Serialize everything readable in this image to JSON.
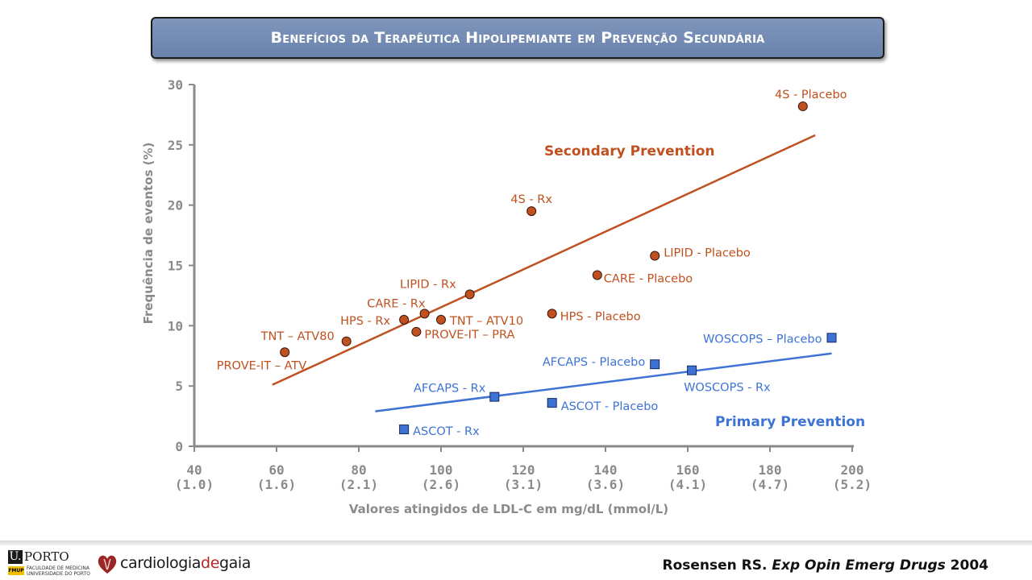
{
  "slide": {
    "title": "Benefícios da Terapêutica Hipolipemiante em Prevenção Secundária"
  },
  "chart_data": {
    "type": "scatter",
    "xlabel": "Valores atingidos de LDL-C em mg/dL (mmol/L)",
    "ylabel": "Frequência de eventos (%)",
    "xlim": [
      40,
      200
    ],
    "ylim": [
      0,
      30
    ],
    "x_ticks": [
      {
        "value": 40,
        "label": "40",
        "sublabel": "(1.0)"
      },
      {
        "value": 60,
        "label": "60",
        "sublabel": "(1.6)"
      },
      {
        "value": 80,
        "label": "80",
        "sublabel": "(2.1)"
      },
      {
        "value": 100,
        "label": "100",
        "sublabel": "(2.6)"
      },
      {
        "value": 120,
        "label": "120",
        "sublabel": "(3.1)"
      },
      {
        "value": 140,
        "label": "140",
        "sublabel": "(3.6)"
      },
      {
        "value": 160,
        "label": "160",
        "sublabel": "(4.1)"
      },
      {
        "value": 180,
        "label": "180",
        "sublabel": "(4.7)"
      },
      {
        "value": 200,
        "label": "200",
        "sublabel": "(5.2)"
      }
    ],
    "y_ticks": [
      {
        "value": 0,
        "label": "0"
      },
      {
        "value": 5,
        "label": "5"
      },
      {
        "value": 10,
        "label": "10"
      },
      {
        "value": 15,
        "label": "15"
      },
      {
        "value": 20,
        "label": "20"
      },
      {
        "value": 25,
        "label": "25"
      },
      {
        "value": 30,
        "label": "30"
      }
    ],
    "grid": false,
    "series": [
      {
        "name": "Secondary Prevention",
        "color": "#c0501f",
        "marker": "circle",
        "points": [
          {
            "label": "4S - Placebo",
            "x": 188,
            "y": 28.2
          },
          {
            "label": "4S - Rx",
            "x": 122,
            "y": 19.5
          },
          {
            "label": "LIPID - Placebo",
            "x": 152,
            "y": 15.8
          },
          {
            "label": "CARE - Placebo",
            "x": 138,
            "y": 14.2
          },
          {
            "label": "LIPID - Rx",
            "x": 107,
            "y": 12.6
          },
          {
            "label": "HPS - Placebo",
            "x": 127,
            "y": 11.0
          },
          {
            "label": "CARE - Rx",
            "x": 96,
            "y": 11.0
          },
          {
            "label": "HPS - Rx",
            "x": 91,
            "y": 10.5
          },
          {
            "label": "TNT – ATV10",
            "x": 100,
            "y": 10.5
          },
          {
            "label": "PROVE-IT – PRA",
            "x": 94,
            "y": 9.5
          },
          {
            "label": "TNT – ATV80",
            "x": 77,
            "y": 8.7
          },
          {
            "label": "PROVE-IT – ATV",
            "x": 62,
            "y": 7.8
          }
        ],
        "trendline": {
          "x": [
            59,
            191
          ],
          "y": [
            5.1,
            25.8
          ]
        }
      },
      {
        "name": "Primary Prevention",
        "color": "#3e73d6",
        "marker": "square",
        "points": [
          {
            "label": "WOSCOPS – Placebo",
            "x": 195,
            "y": 9.0
          },
          {
            "label": "AFCAPS - Placebo",
            "x": 152,
            "y": 6.8
          },
          {
            "label": "WOSCOPS - Rx",
            "x": 161,
            "y": 6.3
          },
          {
            "label": "AFCAPS - Rx",
            "x": 113,
            "y": 4.1
          },
          {
            "label": "ASCOT - Placebo",
            "x": 127,
            "y": 3.6
          },
          {
            "label": "ASCOT - Rx",
            "x": 91,
            "y": 1.4
          }
        ],
        "trendline": {
          "x": [
            84,
            195
          ],
          "y": [
            2.9,
            7.7
          ]
        }
      }
    ]
  },
  "footer": {
    "uporto_word": "PORTO",
    "uporto_box": "U.",
    "fmup_badge": "FMUP",
    "fmup_text": "FACULDADE DE MEDICINA UNIVERSIDADE DO PORTO",
    "gaia_part1": "cardiologia",
    "gaia_part2": "de",
    "gaia_part3": "gaia",
    "citation_author": "Rosensen RS.",
    "citation_journal": "Exp Opin Emerg Drugs",
    "citation_year": "2004"
  }
}
